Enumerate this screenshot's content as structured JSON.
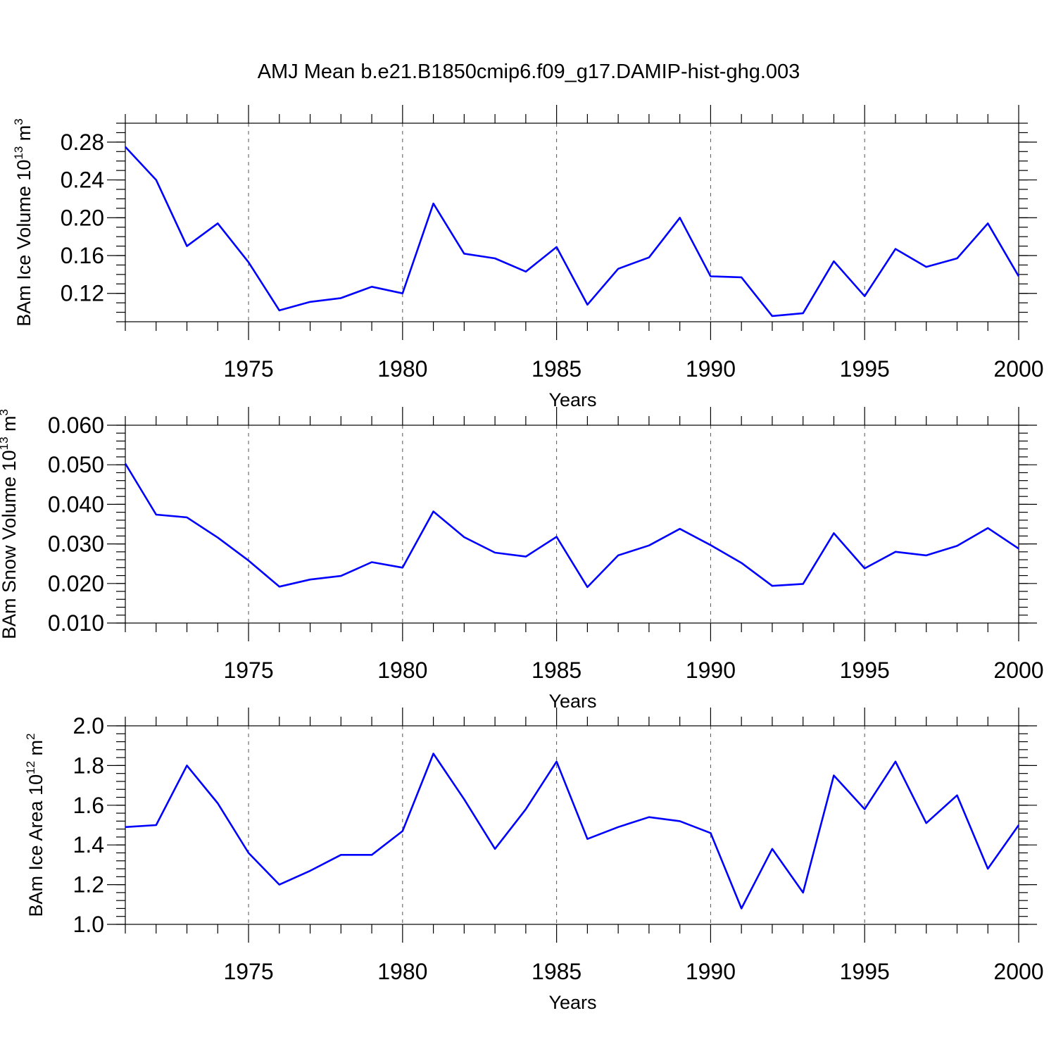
{
  "title": "AMJ Mean b.e21.B1850cmip6.f09_g17.DAMIP-hist-ghg.003",
  "chart_data": [
    {
      "type": "line",
      "xlabel": "Years",
      "ylabel": {
        "prefix": "BAm Ice Volume 10",
        "exponent": "13",
        "unit": " m",
        "unit_exponent": "3"
      },
      "xlim": [
        1971,
        2000
      ],
      "ylim": [
        0.09,
        0.3
      ],
      "x_major_ticks": [
        1975,
        1980,
        1985,
        1990,
        1995,
        2000
      ],
      "x_tick_labels": [
        "1975",
        "1980",
        "1985",
        "1990",
        "1995",
        "2000"
      ],
      "y_major_ticks": [
        0.12,
        0.16,
        0.2,
        0.24,
        0.28
      ],
      "y_tick_labels": [
        "0.12",
        "0.16",
        "0.20",
        "0.24",
        "0.28"
      ],
      "y_minor_step": 0.01,
      "grid": "dashed vertical at major x ticks",
      "series": [
        {
          "name": "Ice Volume",
          "color": "#0000ff",
          "x": [
            1971,
            1972,
            1973,
            1974,
            1975,
            1976,
            1977,
            1978,
            1979,
            1980,
            1981,
            1982,
            1983,
            1984,
            1985,
            1986,
            1987,
            1988,
            1989,
            1990,
            1991,
            1992,
            1993,
            1994,
            1995,
            1996,
            1997,
            1998,
            1999,
            2000
          ],
          "values": [
            0.275,
            0.24,
            0.17,
            0.194,
            0.153,
            0.102,
            0.111,
            0.115,
            0.127,
            0.12,
            0.215,
            0.162,
            0.157,
            0.143,
            0.169,
            0.108,
            0.146,
            0.158,
            0.2,
            0.138,
            0.137,
            0.096,
            0.099,
            0.154,
            0.117,
            0.167,
            0.148,
            0.157,
            0.194,
            0.138
          ]
        }
      ]
    },
    {
      "type": "line",
      "xlabel": "Years",
      "ylabel": {
        "prefix": "BAm Snow Volume 10",
        "exponent": "13",
        "unit": " m",
        "unit_exponent": "3"
      },
      "xlim": [
        1971,
        2000
      ],
      "ylim": [
        0.01,
        0.06
      ],
      "x_major_ticks": [
        1975,
        1980,
        1985,
        1990,
        1995,
        2000
      ],
      "x_tick_labels": [
        "1975",
        "1980",
        "1985",
        "1990",
        "1995",
        "2000"
      ],
      "y_major_ticks": [
        0.01,
        0.02,
        0.03,
        0.04,
        0.05,
        0.06
      ],
      "y_tick_labels": [
        "0.010",
        "0.020",
        "0.030",
        "0.040",
        "0.050",
        "0.060"
      ],
      "y_minor_step": 0.002,
      "grid": "dashed vertical at major x ticks",
      "series": [
        {
          "name": "Snow Volume",
          "color": "#0000ff",
          "x": [
            1971,
            1972,
            1973,
            1974,
            1975,
            1976,
            1977,
            1978,
            1979,
            1980,
            1981,
            1982,
            1983,
            1984,
            1985,
            1986,
            1987,
            1988,
            1989,
            1990,
            1991,
            1992,
            1993,
            1994,
            1995,
            1996,
            1997,
            1998,
            1999,
            2000
          ],
          "values": [
            0.0503,
            0.0374,
            0.0367,
            0.0316,
            0.0258,
            0.0192,
            0.021,
            0.0219,
            0.0254,
            0.024,
            0.0382,
            0.0317,
            0.0278,
            0.0268,
            0.0318,
            0.0191,
            0.0271,
            0.0296,
            0.0338,
            0.0297,
            0.0252,
            0.0194,
            0.0199,
            0.0327,
            0.0238,
            0.028,
            0.0271,
            0.0295,
            0.034,
            0.0288
          ]
        }
      ]
    },
    {
      "type": "line",
      "xlabel": "Years",
      "ylabel": {
        "prefix": "BAm Ice Area 10",
        "exponent": "12",
        "unit": " m",
        "unit_exponent": "2"
      },
      "xlim": [
        1971,
        2000
      ],
      "ylim": [
        1.0,
        2.0
      ],
      "x_major_ticks": [
        1975,
        1980,
        1985,
        1990,
        1995,
        2000
      ],
      "x_tick_labels": [
        "1975",
        "1980",
        "1985",
        "1990",
        "1995",
        "2000"
      ],
      "y_major_ticks": [
        1.0,
        1.2,
        1.4,
        1.6,
        1.8,
        2.0
      ],
      "y_tick_labels": [
        "1.0",
        "1.2",
        "1.4",
        "1.6",
        "1.8",
        "2.0"
      ],
      "y_minor_step": 0.04,
      "grid": "dashed vertical at major x ticks",
      "series": [
        {
          "name": "Ice Area",
          "color": "#0000ff",
          "x": [
            1971,
            1972,
            1973,
            1974,
            1975,
            1976,
            1977,
            1978,
            1979,
            1980,
            1981,
            1982,
            1983,
            1984,
            1985,
            1986,
            1987,
            1988,
            1989,
            1990,
            1991,
            1992,
            1993,
            1994,
            1995,
            1996,
            1997,
            1998,
            1999,
            2000
          ],
          "values": [
            1.49,
            1.5,
            1.8,
            1.61,
            1.36,
            1.2,
            1.27,
            1.35,
            1.35,
            1.47,
            1.86,
            1.63,
            1.38,
            1.58,
            1.82,
            1.43,
            1.49,
            1.54,
            1.52,
            1.46,
            1.08,
            1.38,
            1.16,
            1.75,
            1.58,
            1.82,
            1.51,
            1.65,
            1.28,
            1.5
          ]
        }
      ]
    }
  ]
}
